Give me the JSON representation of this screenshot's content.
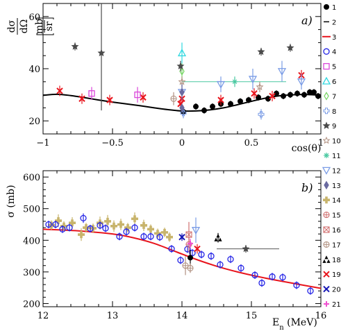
{
  "colors": {
    "black": "#000000",
    "gray": "#555555",
    "red": "#e8141c",
    "blue": "#2323e6",
    "magenta": "#d946d9",
    "cyan": "#30d8e0",
    "green": "#7cd66a",
    "dkgray": "#4a4a4a",
    "teal": "#48c8a0",
    "lblue": "#7a9ce6",
    "tan": "#c8b46c",
    "rose": "#d07070",
    "brown": "#b09080",
    "navy": "#1414b4",
    "pink": "#f050d0",
    "slate": "#6a6aa0"
  },
  "legend": {
    "entries": [
      {
        "label": "1",
        "icon": "filled-circle",
        "color": "#000000"
      },
      {
        "label": "2",
        "icon": "dash",
        "color": "#000000"
      },
      {
        "label": "3",
        "icon": "line",
        "color": "#e8141c"
      },
      {
        "label": "4",
        "icon": "open-circle",
        "color": "#2323e6"
      },
      {
        "label": "5",
        "icon": "open-square",
        "color": "#d946d9"
      },
      {
        "label": "6",
        "icon": "open-triangle",
        "color": "#30d8e0"
      },
      {
        "label": "7",
        "icon": "open-diamond",
        "color": "#7cd66a"
      },
      {
        "label": "8",
        "icon": "open-cross",
        "color": "#7a9ce6"
      },
      {
        "label": "9",
        "icon": "star",
        "color": "#4a4a4a"
      },
      {
        "label": "10",
        "icon": "open-star",
        "color": "#b09080"
      },
      {
        "label": "11",
        "icon": "asterisk",
        "color": "#48c8a0"
      },
      {
        "label": "12",
        "icon": "open-down-triangle",
        "color": "#7a9ce6"
      },
      {
        "label": "13",
        "icon": "thin-diamond",
        "color": "#6a6aa0"
      },
      {
        "label": "14",
        "icon": "filled-cross",
        "color": "#c8b46c"
      },
      {
        "label": "15",
        "icon": "circle-plus",
        "color": "#d07070"
      },
      {
        "label": "16",
        "icon": "square-x",
        "color": "#d07070"
      },
      {
        "label": "17",
        "icon": "circle-plus",
        "color": "#b09080"
      },
      {
        "label": "18",
        "icon": "three-triangles",
        "color": "#000000"
      },
      {
        "label": "19",
        "icon": "x-cross",
        "color": "#e8141c"
      },
      {
        "label": "20",
        "icon": "x-cross",
        "color": "#1414b4"
      },
      {
        "label": "21",
        "icon": "plus",
        "color": "#f050d0"
      }
    ]
  },
  "chart_data": [
    {
      "type": "scatter",
      "panel_label": "a)",
      "xlabel": "cos(θ)",
      "ylabel_num": "dσ",
      "ylabel_den": "dΩ",
      "ylabel_unit_num": "mb",
      "ylabel_unit_den": "sr",
      "xlim": [
        -1,
        1
      ],
      "ylim": [
        15,
        65
      ],
      "xticks": [
        -1,
        -0.5,
        0,
        0.5,
        1
      ],
      "xtick_labels": [
        "−1",
        "−0.5",
        "0",
        "0.5",
        "1"
      ],
      "yticks": [
        20,
        40,
        60
      ],
      "ytick_labels": [
        "20",
        "40",
        "60"
      ],
      "curve": {
        "name": "3",
        "color": "#000000",
        "x": [
          -1,
          -0.9,
          -0.8,
          -0.7,
          -0.6,
          -0.5,
          -0.4,
          -0.3,
          -0.2,
          -0.1,
          0,
          0.1,
          0.2,
          0.3,
          0.4,
          0.5,
          0.6,
          0.7,
          0.8,
          0.9,
          1
        ],
        "y": [
          29.8,
          30.2,
          29.7,
          28.9,
          28.0,
          27.2,
          26.5,
          25.8,
          25.0,
          24.3,
          23.8,
          23.8,
          24.2,
          25.0,
          26.2,
          27.5,
          28.7,
          29.6,
          30.0,
          30.1,
          29.8
        ]
      },
      "series": [
        {
          "name": "1",
          "marker": "filled-circle",
          "color": "#000000",
          "points": [
            [
              0.01,
              23.5,
              1.2
            ],
            [
              0.1,
              25.5,
              1.2
            ],
            [
              0.16,
              24,
              1.2
            ],
            [
              0.22,
              25.5,
              1.2
            ],
            [
              0.28,
              26.5,
              1.2
            ],
            [
              0.35,
              26.5,
              1.2
            ],
            [
              0.42,
              27.5,
              1.2
            ],
            [
              0.48,
              28,
              1.2
            ],
            [
              0.55,
              29,
              1.2
            ],
            [
              0.62,
              28.5,
              1.2
            ],
            [
              0.68,
              30.5,
              1.2
            ],
            [
              0.73,
              29.5,
              1.2
            ],
            [
              0.78,
              30,
              1.2
            ],
            [
              0.83,
              30.5,
              1.2
            ],
            [
              0.88,
              30,
              1.2
            ],
            [
              0.92,
              31,
              1.2
            ],
            [
              0.95,
              31,
              1.2
            ],
            [
              0.98,
              29.5,
              1.2
            ]
          ]
        },
        {
          "name": "19",
          "marker": "x-cross",
          "color": "#e8141c",
          "points": [
            [
              -0.88,
              31.5,
              2
            ],
            [
              -0.72,
              28.5,
              2
            ],
            [
              -0.52,
              28,
              2
            ],
            [
              -0.28,
              29,
              2
            ],
            [
              -0.01,
              26.5,
              2
            ],
            [
              0.0,
              28.5,
              2
            ],
            [
              0.28,
              28,
              2
            ],
            [
              0.52,
              30.5,
              2
            ],
            [
              0.65,
              29.5,
              2
            ],
            [
              0.86,
              37.5,
              2
            ]
          ]
        },
        {
          "name": "5",
          "marker": "open-square",
          "color": "#d946d9",
          "points": [
            [
              -0.65,
              30.5,
              2.5
            ],
            [
              -0.32,
              30,
              3
            ]
          ]
        },
        {
          "name": "6",
          "marker": "open-triangle",
          "color": "#30d8e0",
          "points": [
            [
              0.0,
              46,
              4
            ]
          ]
        },
        {
          "name": "7",
          "marker": "open-diamond",
          "color": "#7cd66a",
          "points": [
            [
              0.0,
              39,
              3
            ]
          ]
        },
        {
          "name": "11",
          "marker": "asterisk",
          "color": "#48c8a0",
          "points": [
            [
              0.38,
              35,
              2
            ]
          ]
        },
        {
          "name": "12",
          "marker": "open-down-triangle",
          "color": "#7a9ce6",
          "points": [
            [
              0.0,
              31,
              3
            ],
            [
              0.28,
              34,
              3
            ],
            [
              0.51,
              36,
              4
            ],
            [
              0.72,
              39,
              4
            ],
            [
              0.86,
              35,
              3
            ]
          ]
        },
        {
          "name": "9",
          "marker": "star",
          "color": "#4a4a4a",
          "points": [
            [
              -0.77,
              48.5,
              1.5
            ],
            [
              -0.58,
              46,
              22
            ],
            [
              -0.01,
              41,
              2
            ],
            [
              0.57,
              46.5,
              1.5
            ],
            [
              0.78,
              48,
              1.5
            ]
          ]
        },
        {
          "name": "10",
          "marker": "open-star",
          "color": "#b09080",
          "points": [
            [
              0.0,
              35,
              2
            ],
            [
              0.56,
              33,
              2
            ]
          ]
        },
        {
          "name": "17",
          "marker": "circle-plus",
          "color": "#b09080",
          "points": [
            [
              -0.06,
              28.5,
              2.5
            ]
          ]
        },
        {
          "name": "8",
          "marker": "open-cross",
          "color": "#7a9ce6",
          "points": [
            [
              0.57,
              22.5,
              2
            ],
            [
              0.01,
              23,
              2
            ]
          ]
        },
        {
          "name": "13",
          "marker": "thin-diamond",
          "color": "#6a6aa0",
          "points": [
            [
              0.0,
              31,
              3
            ],
            [
              0.0,
              25,
              1.5
            ]
          ]
        }
      ],
      "hlines": [
        {
          "name": "11-span",
          "color": "#48c8a0",
          "x0": 0.0,
          "x1": 0.75,
          "y": 35
        },
        {
          "name": "2",
          "color": "#555555",
          "x0": -0.59,
          "x1": -0.57,
          "y": 46
        }
      ]
    },
    {
      "type": "scatter",
      "panel_label": "b)",
      "xlabel": "E",
      "xlabel_sub": "n",
      "xlabel_unit": " (MeV)",
      "ylabel": "σ (mb)",
      "xlim": [
        12,
        16
      ],
      "ylim": [
        190,
        620
      ],
      "xticks": [
        12,
        13,
        14,
        15,
        16
      ],
      "xtick_labels": [
        "12",
        "13",
        "14",
        "15",
        "16"
      ],
      "yticks": [
        200,
        300,
        400,
        500,
        600
      ],
      "ytick_labels": [
        "200",
        "300",
        "400",
        "500",
        "600"
      ],
      "curve": {
        "name": "3",
        "color": "#e8141c",
        "x": [
          12,
          12.5,
          13,
          13.3,
          13.6,
          13.9,
          14.2,
          14.5,
          14.8,
          15.1,
          15.4,
          15.7,
          16
        ],
        "y": [
          435,
          430,
          420,
          408,
          390,
          365,
          340,
          318,
          300,
          285,
          272,
          260,
          248
        ]
      },
      "series": [
        {
          "name": "14",
          "marker": "filled-cross",
          "color": "#c8b46c",
          "points": [
            [
              12.12,
              448,
              15
            ],
            [
              12.22,
              462,
              20
            ],
            [
              12.3,
              445,
              15
            ],
            [
              12.42,
              455,
              18
            ],
            [
              12.55,
              418,
              20
            ],
            [
              12.62,
              440,
              15
            ],
            [
              12.72,
              438,
              15
            ],
            [
              12.82,
              455,
              20
            ],
            [
              12.93,
              460,
              20
            ],
            [
              13.02,
              445,
              18
            ],
            [
              13.12,
              450,
              18
            ],
            [
              13.22,
              440,
              15
            ],
            [
              13.32,
              468,
              20
            ],
            [
              13.45,
              447,
              18
            ],
            [
              13.55,
              435,
              15
            ],
            [
              13.65,
              422,
              15
            ],
            [
              13.75,
              425,
              15
            ],
            [
              13.82,
              410,
              15
            ]
          ]
        },
        {
          "name": "4",
          "marker": "open-circle",
          "color": "#2323e6",
          "points": [
            [
              12.08,
              450,
              12
            ],
            [
              12.18,
              450,
              12
            ],
            [
              12.28,
              435,
              12
            ],
            [
              12.38,
              440,
              12
            ],
            [
              12.58,
              470,
              15
            ],
            [
              12.68,
              437,
              12
            ],
            [
              12.82,
              447,
              12
            ],
            [
              12.9,
              438,
              12
            ],
            [
              13.1,
              412,
              12
            ],
            [
              13.2,
              427,
              12
            ],
            [
              13.32,
              440,
              12
            ],
            [
              13.45,
              412,
              12
            ],
            [
              13.55,
              412,
              12
            ],
            [
              13.68,
              410,
              12
            ],
            [
              13.85,
              373,
              12
            ],
            [
              13.98,
              337,
              12
            ],
            [
              14.08,
              372,
              12
            ],
            [
              14.15,
              360,
              12
            ],
            [
              14.28,
              355,
              12
            ],
            [
              14.42,
              350,
              12
            ],
            [
              14.55,
              323,
              12
            ],
            [
              14.7,
              340,
              12
            ],
            [
              14.85,
              312,
              12
            ],
            [
              15.05,
              290,
              12
            ],
            [
              15.15,
              265,
              12
            ],
            [
              15.3,
              285,
              12
            ],
            [
              15.45,
              283,
              12
            ],
            [
              15.65,
              258,
              12
            ],
            [
              15.85,
              240,
              12
            ]
          ]
        },
        {
          "name": "1",
          "marker": "filled-circle",
          "color": "#000000",
          "points": [
            [
              14.12,
              345,
              25
            ]
          ]
        },
        {
          "name": "15",
          "marker": "circle-plus",
          "color": "#d07070",
          "points": [
            [
              14.1,
              387,
              25
            ]
          ]
        },
        {
          "name": "16",
          "marker": "square-x",
          "color": "#d07070",
          "points": [
            [
              14.1,
              418,
              40
            ]
          ]
        },
        {
          "name": "17",
          "marker": "circle-plus",
          "color": "#b09080",
          "points": [
            [
              14.05,
              320,
              30
            ],
            [
              14.12,
              312,
              15
            ]
          ]
        },
        {
          "name": "12",
          "marker": "open-down-triangle",
          "color": "#7a9ce6",
          "points": [
            [
              14.2,
              432,
              40
            ]
          ]
        },
        {
          "name": "19",
          "marker": "x-cross",
          "color": "#e8141c",
          "points": [
            [
              14.22,
              373,
              15
            ]
          ]
        },
        {
          "name": "20",
          "marker": "x-cross",
          "color": "#1414b4",
          "points": [
            [
              14.0,
              410,
              12
            ]
          ]
        },
        {
          "name": "18",
          "marker": "three-triangles",
          "color": "#000000",
          "points": [
            [
              14.52,
              408,
              15
            ]
          ]
        },
        {
          "name": "9",
          "marker": "star",
          "color": "#4a4a4a",
          "points": [
            [
              14.92,
              373,
              12
            ]
          ]
        },
        {
          "name": "21",
          "marker": "plus",
          "color": "#f050d0",
          "points": [
            [
              14.12,
              390,
              15
            ]
          ]
        }
      ],
      "hlines": [
        {
          "name": "9-span",
          "color": "#555555",
          "x0": 14.5,
          "x1": 15.4,
          "y": 373
        }
      ]
    }
  ]
}
